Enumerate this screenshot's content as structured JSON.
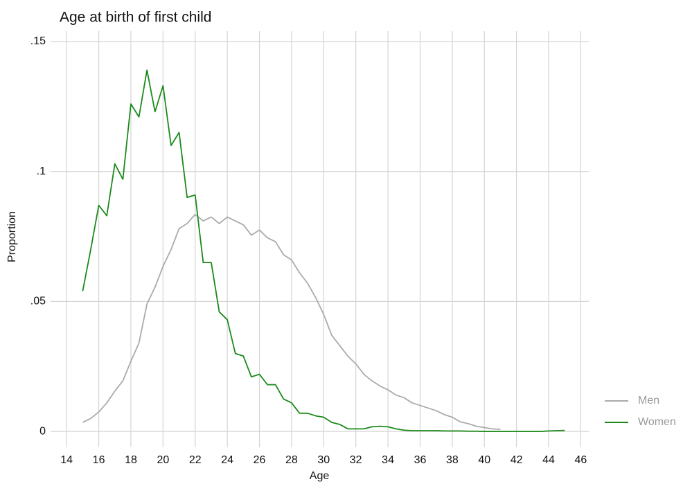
{
  "chart_data": {
    "type": "line",
    "title": "Age at birth of first child",
    "x_label": "Age",
    "y_label": "Proportion",
    "x": [
      15,
      15.5,
      16,
      16.5,
      17,
      17.5,
      18,
      18.5,
      19,
      19.5,
      20,
      20.5,
      21,
      21.5,
      22,
      22.5,
      23,
      23.5,
      24,
      24.5,
      25,
      25.5,
      26,
      26.5,
      27,
      27.5,
      28,
      28.5,
      29,
      29.5,
      30,
      30.5,
      31,
      31.5,
      32,
      32.5,
      33,
      33.5,
      34,
      34.5,
      35,
      35.5,
      36,
      36.5,
      37,
      37.5,
      38,
      38.5,
      39,
      39.5,
      40,
      40.5,
      41,
      41.5,
      42,
      42.5,
      43,
      43.5,
      44,
      44.5,
      45
    ],
    "series": [
      {
        "name": "Men",
        "color": "#aaaaaa",
        "values": [
          0.0035,
          0.005,
          0.0075,
          0.011,
          0.0155,
          0.0195,
          0.027,
          0.034,
          0.049,
          0.0555,
          0.0635,
          0.07,
          0.078,
          0.08,
          0.0835,
          0.081,
          0.0825,
          0.08,
          0.0825,
          0.081,
          0.0795,
          0.0755,
          0.0775,
          0.0745,
          0.073,
          0.068,
          0.066,
          0.061,
          0.057,
          0.0515,
          0.045,
          0.037,
          0.033,
          0.029,
          0.026,
          0.022,
          0.0195,
          0.0175,
          0.016,
          0.014,
          0.013,
          0.011,
          0.01,
          0.009,
          0.008,
          0.0065,
          0.0055,
          0.0037,
          0.003,
          0.002,
          0.0015,
          0.001,
          0.0008,
          null,
          null,
          null,
          null,
          null,
          null,
          null,
          null
        ]
      },
      {
        "name": "Women",
        "color": "#1a8a1a",
        "values": [
          0.054,
          0.07,
          0.087,
          0.083,
          0.103,
          0.097,
          0.126,
          0.121,
          0.139,
          0.123,
          0.133,
          0.11,
          0.115,
          0.09,
          0.091,
          0.065,
          0.065,
          0.046,
          0.043,
          0.03,
          0.029,
          0.021,
          0.022,
          0.018,
          0.018,
          0.0125,
          0.011,
          0.007,
          0.007,
          0.006,
          0.0055,
          0.0035,
          0.0027,
          0.001,
          0.001,
          0.001,
          0.0018,
          0.002,
          0.0018,
          0.001,
          0.0005,
          0.0003,
          0.0003,
          0.0003,
          0.0003,
          0.0002,
          0.0002,
          0.0002,
          0.0001,
          0.0001,
          0,
          0,
          0,
          0,
          0,
          0,
          0,
          0,
          0.0002,
          0.0003,
          0.0004
        ]
      }
    ],
    "xlim": [
      13,
      46.5
    ],
    "xticks": [
      14,
      16,
      18,
      20,
      22,
      24,
      26,
      28,
      30,
      32,
      34,
      36,
      38,
      40,
      42,
      44,
      46
    ],
    "ylim": [
      -0.0045,
      0.154
    ],
    "yticks": [
      0,
      {
        "value": 0.05,
        "label": ".05"
      },
      {
        "value": 0.1,
        "label": ".1"
      },
      {
        "value": 0.15,
        "label": ".15"
      }
    ],
    "grid": true,
    "legend": "lower right"
  }
}
